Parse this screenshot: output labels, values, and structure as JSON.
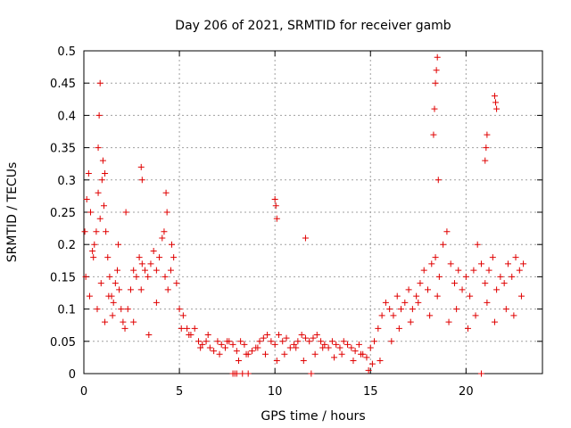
{
  "chart_data": {
    "type": "scatter",
    "title": "Day 206 of 2021, SRMTID for receiver gamb",
    "xlabel": "GPS time / hours",
    "ylabel": "SRMTID / TECUs",
    "xlim": [
      0,
      24
    ],
    "ylim": [
      0,
      0.5
    ],
    "x_ticks": [
      0,
      5,
      10,
      15,
      20
    ],
    "x_tick_labels": [
      "0",
      "5",
      "10",
      "15",
      "20"
    ],
    "y_ticks": [
      0,
      0.05,
      0.1,
      0.15,
      0.2,
      0.25,
      0.3,
      0.35,
      0.4,
      0.45,
      0.5
    ],
    "y_tick_labels": [
      "0",
      "0.05",
      "0.1",
      "0.15",
      "0.2",
      "0.25",
      "0.3",
      "0.35",
      "0.4",
      "0.45",
      "0.5"
    ],
    "grid": true,
    "marker": "+",
    "color": "#e00000",
    "series": [
      {
        "name": "SRMTID",
        "x": [
          0.05,
          0.15,
          0.25,
          0.35,
          0.45,
          0.55,
          0.65,
          0.75,
          0.85,
          0.95,
          1.05,
          1.15,
          1.25,
          1.35,
          1.45,
          1.55,
          1.65,
          1.75,
          1.85,
          1.95,
          2.05,
          2.15,
          2.3,
          2.45,
          2.6,
          2.75,
          2.9,
          3.05,
          3.2,
          3.35,
          3.5,
          3.65,
          3.8,
          3.95,
          4.1,
          4.25,
          4.4,
          4.55,
          4.7,
          4.85,
          5.0,
          5.2,
          5.4,
          5.6,
          5.8,
          6.0,
          6.2,
          6.4,
          6.6,
          6.8,
          7.0,
          7.2,
          7.4,
          7.6,
          7.8,
          8.0,
          8.2,
          8.4,
          8.6,
          8.8,
          9.0,
          9.2,
          9.4,
          9.6,
          9.8,
          10.0,
          10.2,
          10.4,
          10.6,
          10.8,
          11.0,
          11.2,
          11.4,
          11.6,
          11.8,
          12.0,
          12.2,
          12.4,
          12.6,
          12.8,
          13.0,
          13.2,
          13.4,
          13.6,
          13.8,
          14.0,
          14.2,
          14.4,
          14.6,
          14.8,
          15.0,
          15.2,
          15.4,
          15.6,
          15.8,
          16.0,
          16.2,
          16.4,
          16.6,
          16.8,
          17.0,
          17.2,
          17.4,
          17.6,
          17.8,
          18.0,
          18.2,
          18.4,
          18.6,
          18.8,
          19.0,
          19.2,
          19.4,
          19.6,
          19.8,
          20.0,
          20.2,
          20.4,
          20.6,
          20.8,
          21.0,
          21.2,
          21.4,
          21.6,
          21.8,
          22.0,
          22.2,
          22.4,
          22.6,
          22.8,
          23.0,
          0.1,
          0.3,
          0.5,
          0.7,
          0.9,
          1.1,
          1.3,
          1.5,
          1.8,
          2.2,
          2.6,
          3.0,
          3.4,
          3.8,
          4.2,
          4.6,
          5.1,
          5.5,
          6.1,
          6.5,
          7.1,
          7.5,
          8.1,
          8.5,
          9.1,
          9.5,
          10.1,
          10.5,
          11.1,
          11.5,
          12.1,
          12.5,
          13.1,
          13.5,
          14.1,
          14.5,
          15.1,
          15.5,
          16.1,
          16.5,
          17.1,
          17.5,
          18.1,
          18.5,
          19.1,
          19.5,
          20.1,
          20.5,
          21.1,
          21.5,
          22.1,
          22.5,
          22.9,
          0.75,
          0.8,
          0.85,
          1.0,
          1.1,
          3.0,
          3.05,
          4.3,
          4.35,
          10.0,
          10.1,
          10.05,
          11.6,
          18.3,
          18.35,
          18.4,
          18.45,
          18.5,
          18.55,
          21.0,
          21.05,
          21.1,
          21.5,
          21.55,
          21.6,
          7.8,
          7.9,
          8.0,
          8.3,
          8.6,
          11.9,
          14.9,
          20.8
        ],
        "y": [
          0.22,
          0.27,
          0.31,
          0.25,
          0.19,
          0.2,
          0.22,
          0.28,
          0.24,
          0.3,
          0.26,
          0.22,
          0.18,
          0.15,
          0.12,
          0.11,
          0.14,
          0.16,
          0.13,
          0.1,
          0.08,
          0.07,
          0.1,
          0.13,
          0.16,
          0.15,
          0.18,
          0.17,
          0.16,
          0.15,
          0.17,
          0.19,
          0.16,
          0.18,
          0.21,
          0.15,
          0.13,
          0.16,
          0.18,
          0.14,
          0.1,
          0.09,
          0.07,
          0.06,
          0.07,
          0.05,
          0.045,
          0.05,
          0.04,
          0.035,
          0.05,
          0.045,
          0.04,
          0.05,
          0.045,
          0.035,
          0.05,
          0.045,
          0.03,
          0.035,
          0.04,
          0.05,
          0.055,
          0.06,
          0.05,
          0.045,
          0.06,
          0.05,
          0.055,
          0.04,
          0.045,
          0.05,
          0.06,
          0.055,
          0.05,
          0.055,
          0.06,
          0.05,
          0.045,
          0.04,
          0.05,
          0.045,
          0.04,
          0.05,
          0.045,
          0.04,
          0.035,
          0.045,
          0.03,
          0.025,
          0.04,
          0.05,
          0.07,
          0.09,
          0.11,
          0.1,
          0.09,
          0.12,
          0.1,
          0.11,
          0.13,
          0.1,
          0.12,
          0.14,
          0.16,
          0.13,
          0.17,
          0.18,
          0.15,
          0.2,
          0.22,
          0.17,
          0.14,
          0.16,
          0.13,
          0.15,
          0.12,
          0.16,
          0.2,
          0.17,
          0.14,
          0.16,
          0.18,
          0.13,
          0.15,
          0.14,
          0.17,
          0.15,
          0.18,
          0.16,
          0.17,
          0.15,
          0.12,
          0.18,
          0.1,
          0.14,
          0.08,
          0.12,
          0.09,
          0.2,
          0.25,
          0.08,
          0.13,
          0.06,
          0.11,
          0.22,
          0.2,
          0.07,
          0.06,
          0.04,
          0.06,
          0.03,
          0.05,
          0.02,
          0.03,
          0.04,
          0.03,
          0.02,
          0.03,
          0.04,
          0.02,
          0.03,
          0.04,
          0.025,
          0.03,
          0.02,
          0.03,
          0.015,
          0.02,
          0.05,
          0.07,
          0.08,
          0.11,
          0.09,
          0.12,
          0.08,
          0.1,
          0.07,
          0.09,
          0.11,
          0.08,
          0.1,
          0.09,
          0.12,
          0.35,
          0.4,
          0.45,
          0.33,
          0.31,
          0.32,
          0.3,
          0.28,
          0.25,
          0.27,
          0.24,
          0.26,
          0.21,
          0.37,
          0.41,
          0.45,
          0.47,
          0.49,
          0.3,
          0.33,
          0.35,
          0.37,
          0.43,
          0.42,
          0.41,
          0.0,
          0.0,
          0.0,
          0.0,
          0.0,
          0.0,
          0.005,
          0.0
        ]
      }
    ]
  }
}
